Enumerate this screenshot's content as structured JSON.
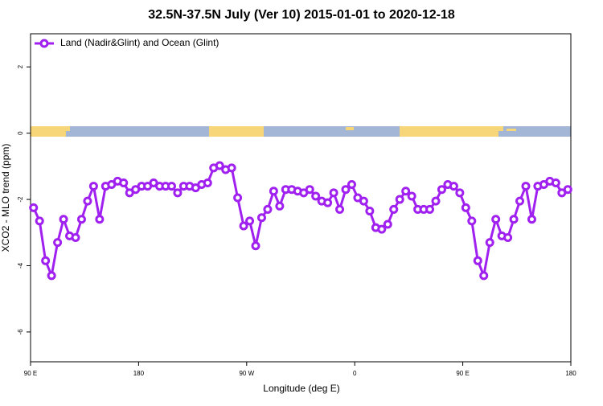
{
  "chart_data": {
    "type": "line",
    "title": "32.5N-37.5N July (Ver 10)   2015-01-01 to 2020-12-18",
    "x_label": "Longitude (deg E)",
    "y_label": "XCO2 - MLO trend (ppm)",
    "x": [
      92.5,
      97.5,
      102.5,
      107.5,
      112.5,
      117.5,
      122.5,
      127.5,
      132.5,
      137.5,
      142.5,
      147.5,
      152.5,
      157.5,
      162.5,
      167.5,
      172.5,
      177.5,
      182.5,
      187.5,
      192.5,
      197.5,
      202.5,
      207.5,
      212.5,
      217.5,
      222.5,
      227.5,
      232.5,
      237.5,
      242.5,
      247.5,
      252.5,
      257.5,
      262.5,
      267.5,
      272.5,
      277.5,
      282.5,
      287.5,
      292.5,
      297.5,
      302.5,
      307.5,
      312.5,
      317.5,
      322.5,
      327.5,
      332.5,
      337.5,
      342.5,
      347.5,
      352.5,
      357.5,
      362.5,
      367.5,
      372.5,
      377.5,
      382.5,
      387.5,
      392.5,
      397.5,
      402.5,
      407.5,
      412.5,
      417.5,
      422.5,
      427.5,
      432.5,
      437.5,
      442.5,
      447.5,
      452.5,
      457.5,
      462.5,
      467.5,
      472.5,
      477.5,
      482.5,
      487.5,
      492.5,
      497.5,
      502.5,
      507.5,
      512.5,
      517.5,
      522.5,
      527.5,
      532.5,
      537.5
    ],
    "series": [
      {
        "name": "Land (Nadir&Glint) and Ocean (Glint)",
        "color": "#a020f0",
        "values": [
          -2.25,
          -2.65,
          -3.85,
          -4.3,
          -3.3,
          -2.6,
          -3.1,
          -3.15,
          -2.6,
          -2.05,
          -1.6,
          -2.6,
          -1.6,
          -1.55,
          -1.45,
          -1.5,
          -1.8,
          -1.7,
          -1.6,
          -1.6,
          -1.5,
          -1.6,
          -1.6,
          -1.6,
          -1.8,
          -1.6,
          -1.6,
          -1.65,
          -1.55,
          -1.5,
          -1.05,
          -0.98,
          -1.1,
          -1.05,
          -1.95,
          -2.8,
          -2.65,
          -3.4,
          -2.55,
          -2.3,
          -1.75,
          -2.2,
          -1.7,
          -1.7,
          -1.75,
          -1.8,
          -1.7,
          -1.9,
          -2.05,
          -2.1,
          -1.8,
          -2.3,
          -1.7,
          -1.55,
          -1.95,
          -2.05,
          -2.35,
          -2.85,
          -2.9,
          -2.75,
          -2.3,
          -2.0,
          -1.75,
          -1.9,
          -2.3,
          -2.3,
          -2.3,
          -2.05,
          -1.7,
          -1.55,
          -1.6,
          -1.8,
          -2.25,
          -2.65,
          -3.85,
          -4.3,
          -3.3,
          -2.6,
          -3.1,
          -3.15,
          -2.6,
          -2.05,
          -1.6,
          -2.6,
          -1.6,
          -1.55,
          -1.45,
          -1.5,
          -1.8,
          -1.7
        ]
      }
    ],
    "xlim": [
      90,
      540
    ],
    "xticks": [
      {
        "value": 90,
        "label": "90 E"
      },
      180,
      {
        "value": 270,
        "label": "90 W"
      },
      {
        "value": 360,
        "label": "0"
      },
      {
        "value": 450,
        "label": "90 E"
      },
      {
        "value": 540,
        "label": "180"
      }
    ],
    "ylim": [
      -6.9,
      3.0
    ],
    "yticks": [
      -6,
      -4,
      -2,
      0,
      2
    ],
    "legend": "top-left"
  }
}
